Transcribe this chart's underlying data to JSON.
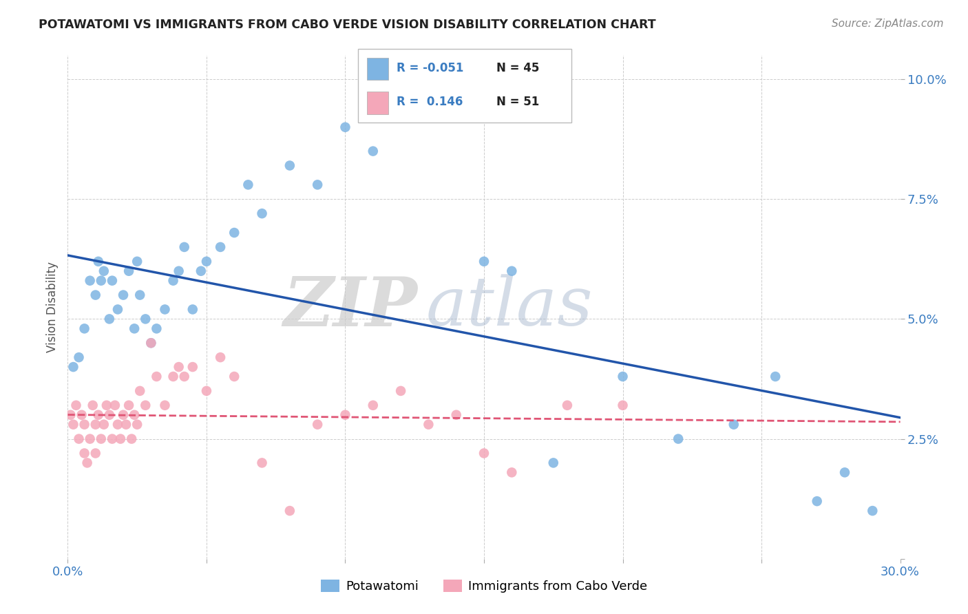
{
  "title": "POTAWATOMI VS IMMIGRANTS FROM CABO VERDE VISION DISABILITY CORRELATION CHART",
  "source_text": "Source: ZipAtlas.com",
  "ylabel": "Vision Disability",
  "xlim": [
    0.0,
    0.3
  ],
  "ylim": [
    0.0,
    0.105
  ],
  "xticks": [
    0.0,
    0.05,
    0.1,
    0.15,
    0.2,
    0.25,
    0.3
  ],
  "xticklabels": [
    "0.0%",
    "",
    "",
    "",
    "",
    "",
    "30.0%"
  ],
  "yticks": [
    0.0,
    0.025,
    0.05,
    0.075,
    0.1
  ],
  "yticklabels": [
    "",
    "2.5%",
    "5.0%",
    "7.5%",
    "10.0%"
  ],
  "blue_R": "-0.051",
  "blue_N": "45",
  "pink_R": "0.146",
  "pink_N": "51",
  "blue_color": "#7EB4E2",
  "pink_color": "#F4A7B9",
  "blue_line_color": "#2255AA",
  "pink_line_color": "#E05575",
  "watermark_zip": "ZIP",
  "watermark_atlas": "atlas",
  "legend_label_blue": "Potawatomi",
  "legend_label_pink": "Immigrants from Cabo Verde",
  "blue_scatter_x": [
    0.002,
    0.004,
    0.006,
    0.008,
    0.01,
    0.011,
    0.012,
    0.013,
    0.015,
    0.016,
    0.018,
    0.02,
    0.022,
    0.024,
    0.025,
    0.026,
    0.028,
    0.03,
    0.032,
    0.035,
    0.038,
    0.04,
    0.042,
    0.045,
    0.048,
    0.05,
    0.055,
    0.06,
    0.065,
    0.07,
    0.08,
    0.09,
    0.1,
    0.11,
    0.13,
    0.15,
    0.16,
    0.175,
    0.2,
    0.22,
    0.24,
    0.255,
    0.27,
    0.28,
    0.29
  ],
  "blue_scatter_y": [
    0.04,
    0.042,
    0.048,
    0.058,
    0.055,
    0.062,
    0.058,
    0.06,
    0.05,
    0.058,
    0.052,
    0.055,
    0.06,
    0.048,
    0.062,
    0.055,
    0.05,
    0.045,
    0.048,
    0.052,
    0.058,
    0.06,
    0.065,
    0.052,
    0.06,
    0.062,
    0.065,
    0.068,
    0.078,
    0.072,
    0.082,
    0.078,
    0.09,
    0.085,
    0.095,
    0.062,
    0.06,
    0.02,
    0.038,
    0.025,
    0.028,
    0.038,
    0.012,
    0.018,
    0.01
  ],
  "pink_scatter_x": [
    0.001,
    0.002,
    0.003,
    0.004,
    0.005,
    0.006,
    0.006,
    0.007,
    0.008,
    0.009,
    0.01,
    0.01,
    0.011,
    0.012,
    0.013,
    0.014,
    0.015,
    0.016,
    0.017,
    0.018,
    0.019,
    0.02,
    0.021,
    0.022,
    0.023,
    0.024,
    0.025,
    0.026,
    0.028,
    0.03,
    0.032,
    0.035,
    0.038,
    0.04,
    0.042,
    0.045,
    0.05,
    0.055,
    0.06,
    0.07,
    0.08,
    0.09,
    0.1,
    0.11,
    0.12,
    0.13,
    0.14,
    0.15,
    0.16,
    0.18,
    0.2
  ],
  "pink_scatter_y": [
    0.03,
    0.028,
    0.032,
    0.025,
    0.03,
    0.022,
    0.028,
    0.02,
    0.025,
    0.032,
    0.028,
    0.022,
    0.03,
    0.025,
    0.028,
    0.032,
    0.03,
    0.025,
    0.032,
    0.028,
    0.025,
    0.03,
    0.028,
    0.032,
    0.025,
    0.03,
    0.028,
    0.035,
    0.032,
    0.045,
    0.038,
    0.032,
    0.038,
    0.04,
    0.038,
    0.04,
    0.035,
    0.042,
    0.038,
    0.02,
    0.01,
    0.028,
    0.03,
    0.032,
    0.035,
    0.028,
    0.03,
    0.022,
    0.018,
    0.032,
    0.032
  ]
}
